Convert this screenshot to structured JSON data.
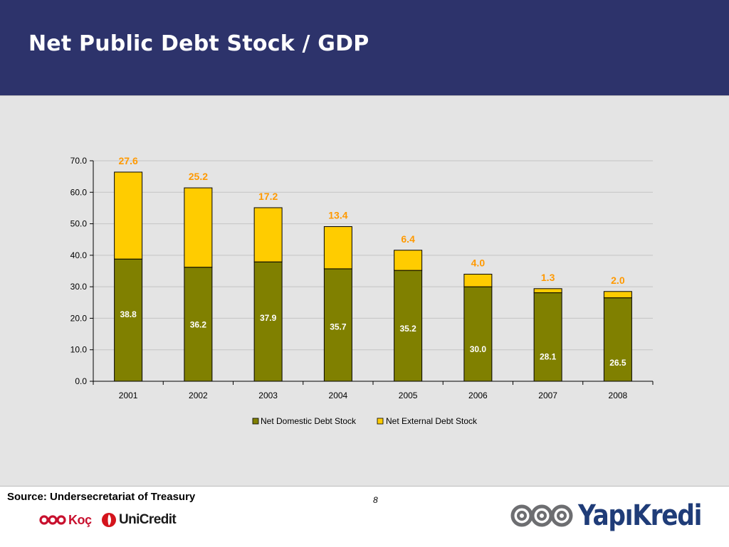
{
  "title": "Net Public Debt Stock / GDP",
  "footer": {
    "source": "Source: Undersecretariat of Treasury",
    "page_number": "8",
    "logos": {
      "koc": "Koç",
      "unicredit": "UniCredit",
      "yapikredi": "YapıKredi"
    }
  },
  "colors": {
    "header_bg": "#2d336b",
    "domestic": "#808000",
    "external": "#ffcc00",
    "external_label": "#ff9900"
  },
  "chart_data": {
    "type": "bar",
    "stacked": true,
    "categories": [
      "2001",
      "2002",
      "2003",
      "2004",
      "2005",
      "2006",
      "2007",
      "2008"
    ],
    "series": [
      {
        "name": "Net Domestic Debt Stock",
        "values": [
          38.8,
          36.2,
          37.9,
          35.7,
          35.2,
          30.0,
          28.1,
          26.5
        ],
        "labels": [
          "38.8",
          "36.2",
          "37.9",
          "35.7",
          "35.2",
          "30.0",
          "28.1",
          "26.5"
        ],
        "color": "#808000"
      },
      {
        "name": "Net External Debt Stock",
        "values": [
          27.6,
          25.2,
          17.2,
          13.4,
          6.4,
          4.0,
          1.3,
          2.0
        ],
        "labels": [
          "27.6",
          "25.2",
          "17.2",
          "13.4",
          "6.4",
          "4.0",
          "1.3",
          "2.0"
        ],
        "color": "#ffcc00"
      }
    ],
    "yticks": [
      "0.0",
      "10.0",
      "20.0",
      "30.0",
      "40.0",
      "50.0",
      "60.0",
      "70.0"
    ],
    "ylim": [
      0,
      70
    ],
    "grid": true,
    "legend": "bottom"
  }
}
